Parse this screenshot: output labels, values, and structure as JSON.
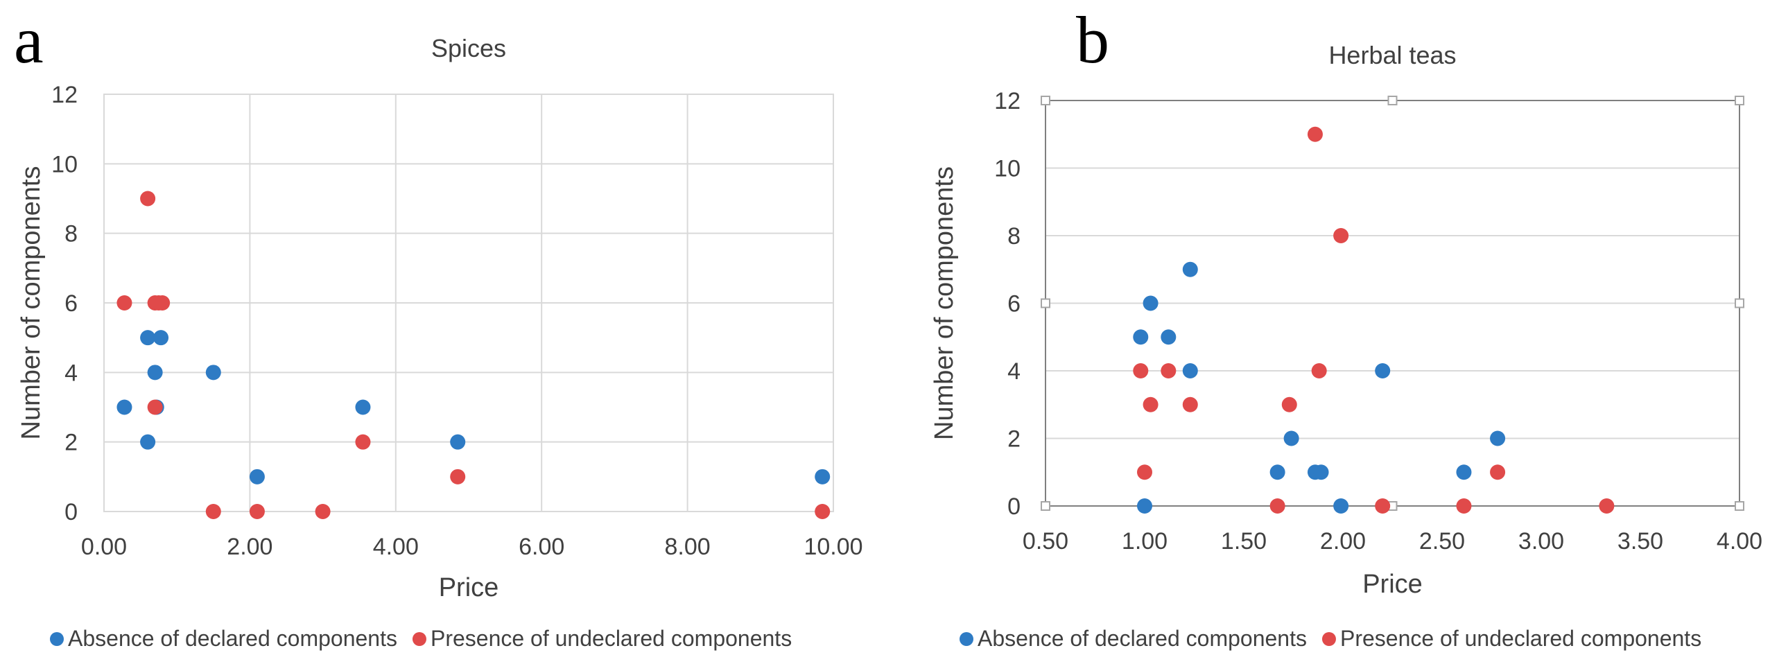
{
  "colors": {
    "absent": "#2e7bc4",
    "present": "#e04a4a"
  },
  "chart_data": [
    {
      "panel_label": "a",
      "type": "scatter",
      "title": "Spices",
      "xlabel": "Price",
      "ylabel": "Number of components",
      "xlim": [
        0,
        10
      ],
      "ylim": [
        0,
        12
      ],
      "xticks": [
        0,
        2,
        4,
        6,
        8,
        10
      ],
      "yticks": [
        0,
        2,
        4,
        6,
        8,
        10,
        12
      ],
      "xtick_labels": [
        "0.00",
        "2.00",
        "4.00",
        "6.00",
        "8.00",
        "10.00"
      ],
      "ytick_labels": [
        "0",
        "2",
        "4",
        "6",
        "8",
        "10",
        "12"
      ],
      "grid": "both",
      "series": [
        {
          "name": "Absence of declared components",
          "points": [
            [
              0.28,
              3
            ],
            [
              0.6,
              5
            ],
            [
              0.6,
              2
            ],
            [
              0.7,
              4
            ],
            [
              0.72,
              3
            ],
            [
              0.78,
              5
            ],
            [
              1.5,
              4
            ],
            [
              2.1,
              1
            ],
            [
              3.55,
              3
            ],
            [
              4.85,
              2
            ],
            [
              9.85,
              1
            ]
          ]
        },
        {
          "name": "Presence of undeclared components",
          "points": [
            [
              0.28,
              6
            ],
            [
              0.6,
              9
            ],
            [
              0.7,
              6
            ],
            [
              0.75,
              6
            ],
            [
              0.8,
              6
            ],
            [
              0.7,
              3
            ],
            [
              1.5,
              0
            ],
            [
              2.1,
              0
            ],
            [
              3.0,
              0
            ],
            [
              3.55,
              2
            ],
            [
              4.85,
              1
            ],
            [
              9.85,
              0
            ]
          ]
        }
      ],
      "legend": "bottom"
    },
    {
      "panel_label": "b",
      "type": "scatter",
      "title": "Herbal teas",
      "xlabel": "Price",
      "ylabel": "Number of components",
      "xlim": [
        0.5,
        4.0
      ],
      "ylim": [
        0,
        12
      ],
      "xticks": [
        0.5,
        1.0,
        1.5,
        2.0,
        2.5,
        3.0,
        3.5,
        4.0
      ],
      "yticks": [
        0,
        2,
        4,
        6,
        8,
        10,
        12
      ],
      "xtick_labels": [
        "0.50",
        "1.00",
        "1.50",
        "2.00",
        "2.50",
        "3.00",
        "3.50",
        "4.00"
      ],
      "ytick_labels": [
        "0",
        "2",
        "4",
        "6",
        "8",
        "10",
        "12"
      ],
      "grid": "horizontal",
      "series": [
        {
          "name": "Absence of declared components",
          "points": [
            [
              0.98,
              5
            ],
            [
              1.0,
              0
            ],
            [
              1.03,
              6
            ],
            [
              1.12,
              5
            ],
            [
              1.23,
              7
            ],
            [
              1.23,
              4
            ],
            [
              1.67,
              1
            ],
            [
              1.74,
              2
            ],
            [
              1.86,
              1
            ],
            [
              1.89,
              1
            ],
            [
              1.99,
              0
            ],
            [
              2.2,
              4
            ],
            [
              2.61,
              1
            ],
            [
              2.78,
              2
            ]
          ]
        },
        {
          "name": "Presence of undeclared components",
          "points": [
            [
              0.98,
              4
            ],
            [
              1.0,
              1
            ],
            [
              1.03,
              3
            ],
            [
              1.12,
              4
            ],
            [
              1.23,
              3
            ],
            [
              1.67,
              0
            ],
            [
              1.73,
              3
            ],
            [
              1.86,
              11
            ],
            [
              1.88,
              4
            ],
            [
              1.99,
              8
            ],
            [
              2.2,
              0
            ],
            [
              2.61,
              0
            ],
            [
              2.78,
              1
            ],
            [
              3.33,
              0
            ]
          ]
        }
      ],
      "legend": "bottom"
    }
  ]
}
